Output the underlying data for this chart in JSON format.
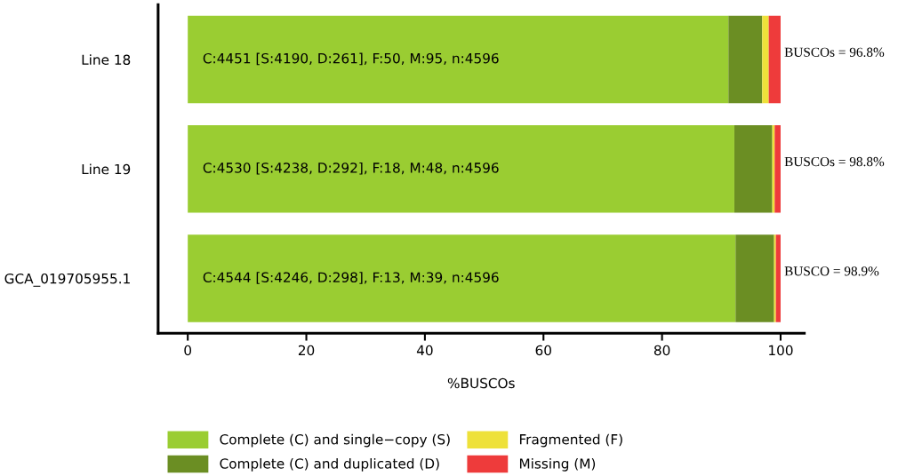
{
  "chart_data": {
    "type": "bar",
    "orientation": "horizontal",
    "stacked": true,
    "categories": [
      "Line 18",
      "Line 19",
      "GCA_019705955.1"
    ],
    "series": [
      {
        "name": "Complete (C) and single−copy (S)",
        "color": "#9acd32",
        "values": [
          91.2,
          92.2,
          92.4
        ]
      },
      {
        "name": "Complete (C) and duplicated (D)",
        "color": "#6b8e23",
        "values": [
          5.7,
          6.4,
          6.5
        ]
      },
      {
        "name": "Fragmented (F)",
        "color": "#eee13a",
        "values": [
          1.1,
          0.4,
          0.3
        ]
      },
      {
        "name": "Missing (M)",
        "color": "#ee3b3b",
        "values": [
          2.0,
          1.0,
          0.8
        ]
      }
    ],
    "xlabel": "%BUSCOs",
    "xlim": [
      -5,
      104
    ],
    "xticks": [
      0,
      20,
      40,
      60,
      80,
      100
    ],
    "annotations": [
      "C:4451 [S:4190, D:261], F:50, M:95, n:4596",
      "C:4530 [S:4238, D:292], F:18, M:48, n:4596",
      "C:4544 [S:4246, D:298], F:13, M:39, n:4596",
      "BUSCOs = 96.8%",
      "BUSCOs = 98.8%",
      "BUSCO = 98.9%"
    ],
    "grid": false,
    "legend": "bottom"
  }
}
